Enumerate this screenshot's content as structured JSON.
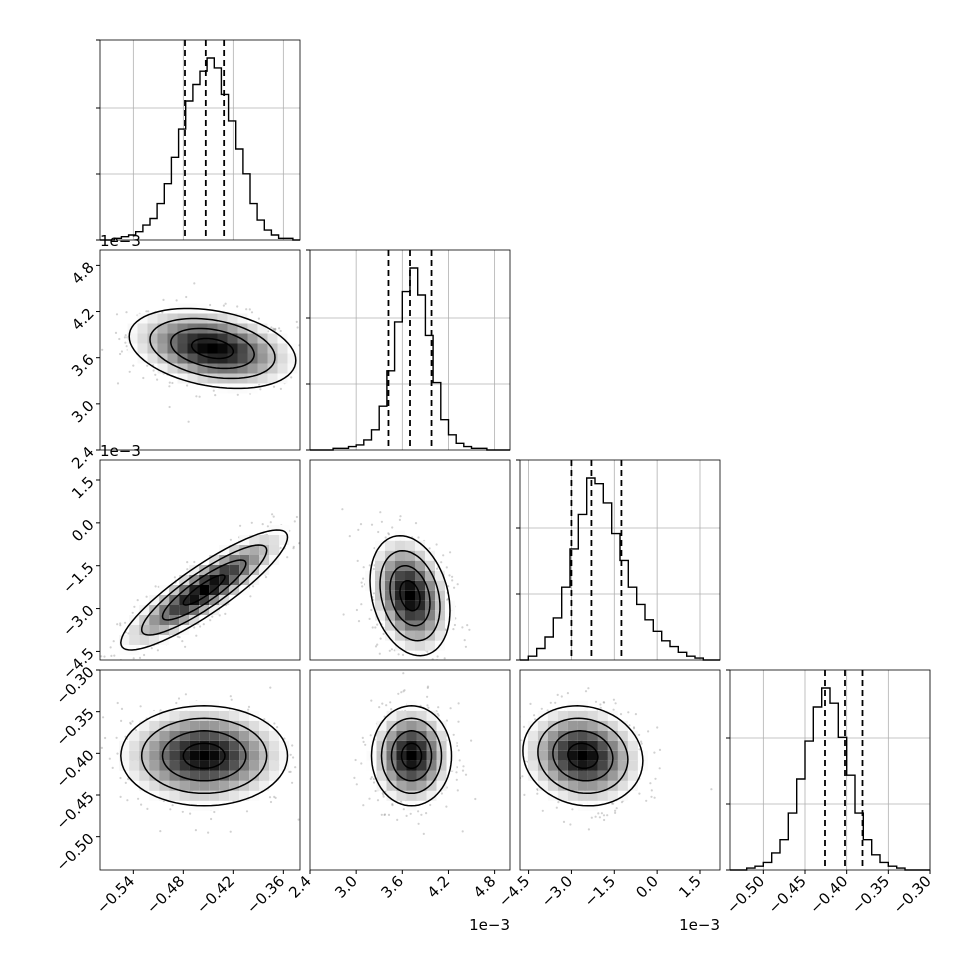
{
  "chart_data": {
    "type": "corner",
    "grid": true,
    "parameters": [
      {
        "range": [
          -0.58,
          -0.34
        ],
        "ticks": [
          -0.54,
          -0.48,
          -0.42,
          -0.36
        ],
        "tick_labels": [
          "−0.54",
          "−0.48",
          "−0.42",
          "−0.36"
        ],
        "offset_text": ""
      },
      {
        "range": [
          2.4,
          5.0
        ],
        "ticks": [
          2.4,
          3.0,
          3.6,
          4.2,
          4.8
        ],
        "tick_labels": [
          "2.4",
          "3.0",
          "3.6",
          "4.2",
          "4.8"
        ],
        "offset_text": "1e−3"
      },
      {
        "range": [
          -4.8,
          2.2
        ],
        "ticks": [
          -4.5,
          -3.0,
          -1.5,
          0.0,
          1.5
        ],
        "tick_labels": [
          "−4.5",
          "−3.0",
          "−1.5",
          "0.0",
          "1.5"
        ],
        "offset_text": "1e−3"
      },
      {
        "range": [
          -0.54,
          -0.3
        ],
        "ticks": [
          -0.5,
          -0.45,
          -0.4,
          -0.35,
          -0.3
        ],
        "tick_labels": [
          "−0.50",
          "−0.45",
          "−0.40",
          "−0.35",
          "−0.30"
        ],
        "offset_text": ""
      }
    ],
    "histograms": [
      {
        "quantiles": [
          -0.478,
          -0.453,
          -0.431
        ],
        "values": [
          0,
          0,
          1,
          2,
          3,
          5,
          9,
          13,
          22,
          34,
          50,
          67,
          84,
          94,
          102,
          110,
          104,
          88,
          72,
          55,
          40,
          22,
          12,
          6,
          3,
          1,
          1,
          0
        ]
      },
      {
        "quantiles": [
          3.42,
          3.7,
          3.98
        ],
        "values": [
          0,
          0,
          0,
          1,
          1,
          2,
          3,
          6,
          12,
          26,
          47,
          76,
          94,
          108,
          92,
          68,
          40,
          18,
          9,
          4,
          2,
          1,
          1,
          0,
          0,
          0
        ]
      },
      {
        "quantiles": [
          -3.0,
          -2.3,
          -1.25
        ],
        "values": [
          0,
          2,
          6,
          12,
          22,
          38,
          58,
          76,
          95,
          92,
          82,
          66,
          52,
          38,
          29,
          21,
          15,
          10,
          7,
          4,
          2,
          1,
          0,
          0
        ]
      },
      {
        "quantiles": [
          -0.426,
          -0.402,
          -0.381
        ],
        "values": [
          0,
          0,
          1,
          2,
          4,
          9,
          16,
          30,
          48,
          68,
          86,
          96,
          88,
          70,
          50,
          30,
          16,
          8,
          4,
          2,
          1,
          0,
          0,
          0
        ]
      }
    ],
    "pairs": [
      {
        "x": 0,
        "y": 1,
        "center": [
          -0.445,
          3.72
        ],
        "spread": [
          0.05,
          0.26
        ],
        "corr": -0.3
      },
      {
        "x": 0,
        "y": 2,
        "center": [
          -0.455,
          -2.35
        ],
        "spread": [
          0.05,
          1.05
        ],
        "corr": 0.88
      },
      {
        "x": 1,
        "y": 2,
        "center": [
          3.7,
          -2.55
        ],
        "spread": [
          0.26,
          1.05
        ],
        "corr": -0.25
      },
      {
        "x": 0,
        "y": 3,
        "center": [
          -0.455,
          -0.403
        ],
        "spread": [
          0.05,
          0.03
        ],
        "corr": 0.0
      },
      {
        "x": 1,
        "y": 3,
        "center": [
          3.72,
          -0.403
        ],
        "spread": [
          0.26,
          0.03
        ],
        "corr": 0.0
      },
      {
        "x": 2,
        "y": 3,
        "center": [
          -2.6,
          -0.403
        ],
        "spread": [
          1.05,
          0.03
        ],
        "corr": -0.1
      }
    ]
  }
}
